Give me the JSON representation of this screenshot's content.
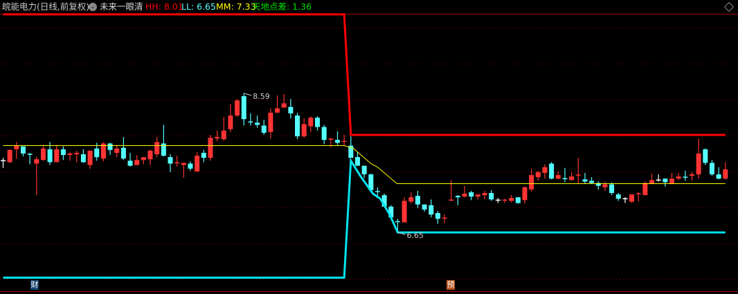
{
  "header": {
    "title": "皖能电力(日线,前复权)",
    "indicator_menu_icon": "chevron-down-circle-icon",
    "indicator_name": "未来一眼清",
    "hh_label": "HH: 8.01",
    "ll_label": "LL: 6.65",
    "mm_label": "MM: 7.33",
    "spread_label": "天地点差: 1.36"
  },
  "colors": {
    "up": "#ff3333",
    "down": "#54ffff",
    "flat": "#ffffff",
    "hh": "#ff0000",
    "ll": "#00e5ee",
    "mm": "#ffff00",
    "spread": "#00e000",
    "grid": "#8b0000",
    "text": "#c8c8c8"
  },
  "chart_data": {
    "type": "candlestick",
    "ohlc_order": [
      "open",
      "high",
      "low",
      "close"
    ],
    "candles": [
      [
        7.65,
        7.69,
        7.55,
        7.65
      ],
      [
        7.63,
        7.81,
        7.62,
        7.8
      ],
      [
        7.81,
        7.91,
        7.68,
        7.86
      ],
      [
        7.85,
        7.85,
        7.71,
        7.75
      ],
      [
        7.74,
        7.76,
        7.6,
        7.74
      ],
      [
        7.61,
        7.71,
        7.17,
        7.67
      ],
      [
        7.66,
        7.87,
        7.65,
        7.82
      ],
      [
        7.81,
        7.91,
        7.59,
        7.63
      ],
      [
        7.63,
        7.87,
        7.63,
        7.81
      ],
      [
        7.81,
        7.85,
        7.66,
        7.73
      ],
      [
        7.73,
        7.77,
        7.65,
        7.75
      ],
      [
        7.74,
        7.79,
        7.63,
        7.76
      ],
      [
        7.74,
        7.81,
        7.62,
        7.63
      ],
      [
        7.59,
        7.79,
        7.54,
        7.79
      ],
      [
        7.82,
        7.9,
        7.65,
        7.7
      ],
      [
        7.68,
        7.91,
        7.64,
        7.89
      ],
      [
        7.89,
        7.9,
        7.73,
        7.8
      ],
      [
        7.76,
        7.87,
        7.7,
        7.82
      ],
      [
        7.83,
        7.98,
        7.66,
        7.68
      ],
      [
        7.65,
        7.76,
        7.57,
        7.58
      ],
      [
        7.59,
        7.73,
        7.59,
        7.66
      ],
      [
        7.66,
        7.7,
        7.6,
        7.7
      ],
      [
        7.67,
        7.8,
        7.59,
        7.79
      ],
      [
        7.74,
        7.98,
        7.7,
        7.91
      ],
      [
        7.89,
        8.15,
        7.71,
        7.72
      ],
      [
        7.7,
        7.74,
        7.49,
        7.61
      ],
      [
        7.62,
        7.72,
        7.57,
        7.62
      ],
      [
        7.59,
        7.62,
        7.41,
        7.62
      ],
      [
        7.61,
        7.64,
        7.51,
        7.54
      ],
      [
        7.5,
        7.77,
        7.5,
        7.72
      ],
      [
        7.76,
        7.8,
        7.63,
        7.69
      ],
      [
        7.69,
        8.01,
        7.65,
        7.97
      ],
      [
        7.96,
        8.07,
        7.92,
        7.98
      ],
      [
        7.95,
        8.26,
        7.93,
        8.07
      ],
      [
        8.09,
        8.44,
        8.05,
        8.28
      ],
      [
        8.28,
        8.51,
        8.26,
        8.49
      ],
      [
        8.55,
        8.59,
        8.14,
        8.23
      ],
      [
        8.19,
        8.31,
        8.14,
        8.19
      ],
      [
        8.18,
        8.28,
        8.11,
        8.15
      ],
      [
        8.14,
        8.22,
        8.01,
        8.04
      ],
      [
        8.05,
        8.38,
        7.96,
        8.32
      ],
      [
        8.32,
        8.56,
        8.32,
        8.38
      ],
      [
        8.39,
        8.58,
        8.39,
        8.45
      ],
      [
        8.4,
        8.51,
        8.24,
        8.31
      ],
      [
        8.28,
        8.32,
        7.95,
        7.99
      ],
      [
        7.99,
        8.24,
        7.97,
        8.16
      ],
      [
        8.13,
        8.27,
        8.05,
        8.25
      ],
      [
        8.25,
        8.27,
        8.07,
        8.12
      ],
      [
        8.12,
        8.15,
        7.88,
        7.94
      ],
      [
        7.95,
        7.97,
        7.84,
        7.95
      ],
      [
        7.94,
        8.06,
        7.87,
        7.9
      ],
      [
        7.92,
        8.01,
        7.86,
        7.92
      ],
      [
        7.86,
        7.99,
        7.69,
        7.69
      ],
      [
        7.7,
        7.77,
        7.58,
        7.58
      ],
      [
        7.58,
        7.58,
        7.41,
        7.46
      ],
      [
        7.46,
        7.47,
        7.24,
        7.24
      ],
      [
        7.22,
        7.28,
        7.13,
        7.22
      ],
      [
        7.17,
        7.19,
        7.01,
        7.01
      ],
      [
        7.01,
        7.03,
        6.86,
        6.86
      ],
      [
        6.8,
        6.84,
        6.65,
        6.8
      ],
      [
        6.79,
        7.14,
        6.79,
        7.09
      ],
      [
        7.08,
        7.21,
        7.05,
        7.14
      ],
      [
        7.16,
        7.23,
        6.99,
        7.04
      ],
      [
        7.04,
        7.04,
        6.94,
        6.97
      ],
      [
        7.03,
        7.11,
        6.86,
        6.9
      ],
      [
        6.92,
        6.95,
        6.77,
        6.84
      ],
      [
        6.85,
        6.9,
        6.78,
        6.85
      ],
      [
        7.1,
        7.38,
        7.09,
        7.1
      ],
      [
        7.16,
        7.17,
        7.03,
        7.14
      ],
      [
        7.15,
        7.3,
        7.14,
        7.19
      ],
      [
        7.21,
        7.23,
        7.1,
        7.15
      ],
      [
        7.15,
        7.18,
        7.11,
        7.18
      ],
      [
        7.17,
        7.23,
        7.11,
        7.2
      ],
      [
        7.2,
        7.24,
        7.09,
        7.11
      ],
      [
        7.1,
        7.13,
        7.06,
        7.1
      ],
      [
        7.1,
        7.12,
        7.06,
        7.1
      ],
      [
        7.09,
        7.17,
        7.07,
        7.13
      ],
      [
        7.14,
        7.14,
        7.05,
        7.06
      ],
      [
        7.1,
        7.29,
        7.05,
        7.28
      ],
      [
        7.25,
        7.54,
        7.22,
        7.45
      ],
      [
        7.42,
        7.51,
        7.37,
        7.49
      ],
      [
        7.48,
        7.6,
        7.4,
        7.56
      ],
      [
        7.61,
        7.63,
        7.39,
        7.4
      ],
      [
        7.4,
        7.5,
        7.39,
        7.45
      ],
      [
        7.4,
        7.55,
        7.35,
        7.4
      ],
      [
        7.38,
        7.49,
        7.38,
        7.43
      ],
      [
        7.45,
        7.69,
        7.33,
        7.45
      ],
      [
        7.39,
        7.48,
        7.33,
        7.36
      ],
      [
        7.37,
        7.42,
        7.33,
        7.34
      ],
      [
        7.34,
        7.36,
        7.25,
        7.3
      ],
      [
        7.28,
        7.36,
        7.23,
        7.32
      ],
      [
        7.32,
        7.35,
        7.17,
        7.2
      ],
      [
        7.18,
        7.2,
        7.09,
        7.12
      ],
      [
        7.12,
        7.14,
        7.06,
        7.12
      ],
      [
        7.08,
        7.18,
        7.06,
        7.18
      ],
      [
        7.19,
        7.21,
        7.08,
        7.19
      ],
      [
        7.17,
        7.36,
        7.17,
        7.34
      ],
      [
        7.33,
        7.47,
        7.32,
        7.38
      ],
      [
        7.38,
        7.46,
        7.36,
        7.38
      ],
      [
        7.4,
        7.4,
        7.29,
        7.35
      ],
      [
        7.33,
        7.48,
        7.32,
        7.4
      ],
      [
        7.4,
        7.48,
        7.38,
        7.43
      ],
      [
        7.42,
        7.51,
        7.37,
        7.42
      ],
      [
        7.44,
        7.49,
        7.37,
        7.46
      ],
      [
        7.46,
        7.96,
        7.4,
        7.75
      ],
      [
        7.81,
        7.82,
        7.59,
        7.62
      ],
      [
        7.62,
        7.66,
        7.44,
        7.46
      ],
      [
        7.46,
        7.56,
        7.39,
        7.4
      ],
      [
        7.4,
        7.63,
        7.39,
        7.53
      ]
    ],
    "flat_candle_indices": [
      0,
      74,
      93,
      98
    ],
    "lines": {
      "hh": [
        [
          0,
          9.69
        ],
        [
          51,
          9.69
        ],
        [
          52,
          8.01
        ],
        [
          108,
          8.01
        ]
      ],
      "ll": [
        [
          0,
          6.02
        ],
        [
          51,
          6.02
        ],
        [
          52,
          7.65
        ],
        [
          53.4,
          7.44
        ],
        [
          55.3,
          7.19
        ],
        [
          56.4,
          7.12
        ],
        [
          57.8,
          6.9
        ],
        [
          59,
          6.65
        ],
        [
          108,
          6.65
        ]
      ],
      "mm": [
        [
          0,
          7.86
        ],
        [
          51,
          7.86
        ],
        [
          52.4,
          7.82
        ],
        [
          55,
          7.61
        ],
        [
          56,
          7.56
        ],
        [
          58.9,
          7.33
        ],
        [
          108,
          7.33
        ]
      ]
    },
    "annotations": [
      {
        "text": "8.59",
        "index": 36,
        "price": 8.59
      },
      {
        "text": "6.65",
        "index": 59,
        "price": 6.65
      }
    ],
    "grid": true
  },
  "markers": {
    "finance": "财",
    "forecast": "预"
  }
}
